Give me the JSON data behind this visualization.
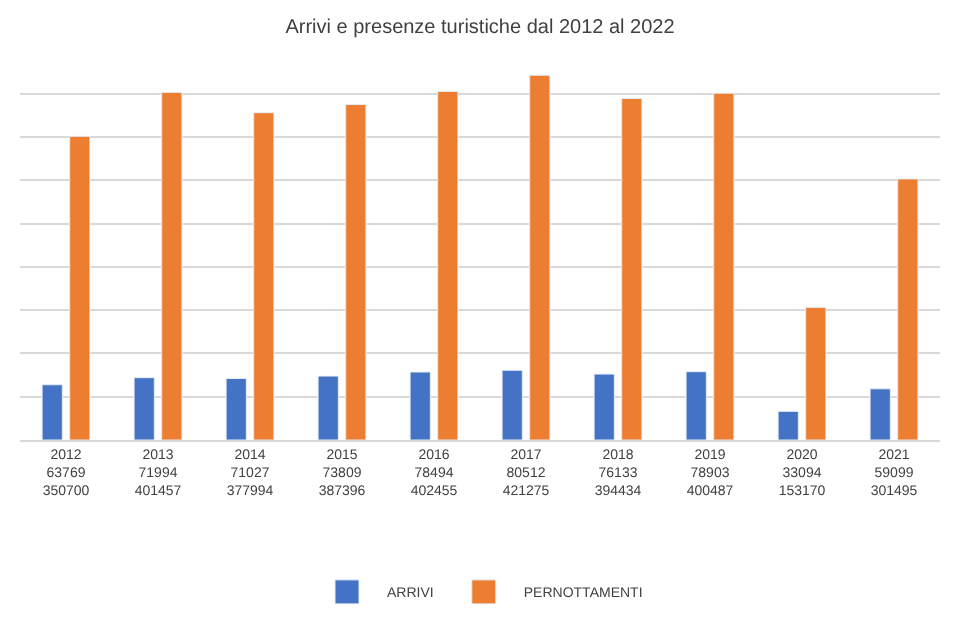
{
  "chart_data": {
    "type": "bar",
    "title": "Arrivi e presenze turistiche dal 2012 al 2022",
    "categories": [
      "2012",
      "2013",
      "2014",
      "2015",
      "2016",
      "2017",
      "2018",
      "2019",
      "2020",
      "2021"
    ],
    "series": [
      {
        "name": "ARRIVI",
        "color": "#4472c4",
        "values": [
          63769,
          71994,
          71027,
          73809,
          78494,
          80512,
          76133,
          78903,
          33094,
          59099
        ]
      },
      {
        "name": "PERNOTTAMENTI",
        "color": "#ed7d31",
        "values": [
          350700,
          401457,
          377994,
          387396,
          402455,
          421275,
          394434,
          400487,
          153170,
          301495
        ]
      }
    ],
    "tick_labels": "x",
    "grid": "y",
    "data_labels": true,
    "legend": "bottom"
  }
}
